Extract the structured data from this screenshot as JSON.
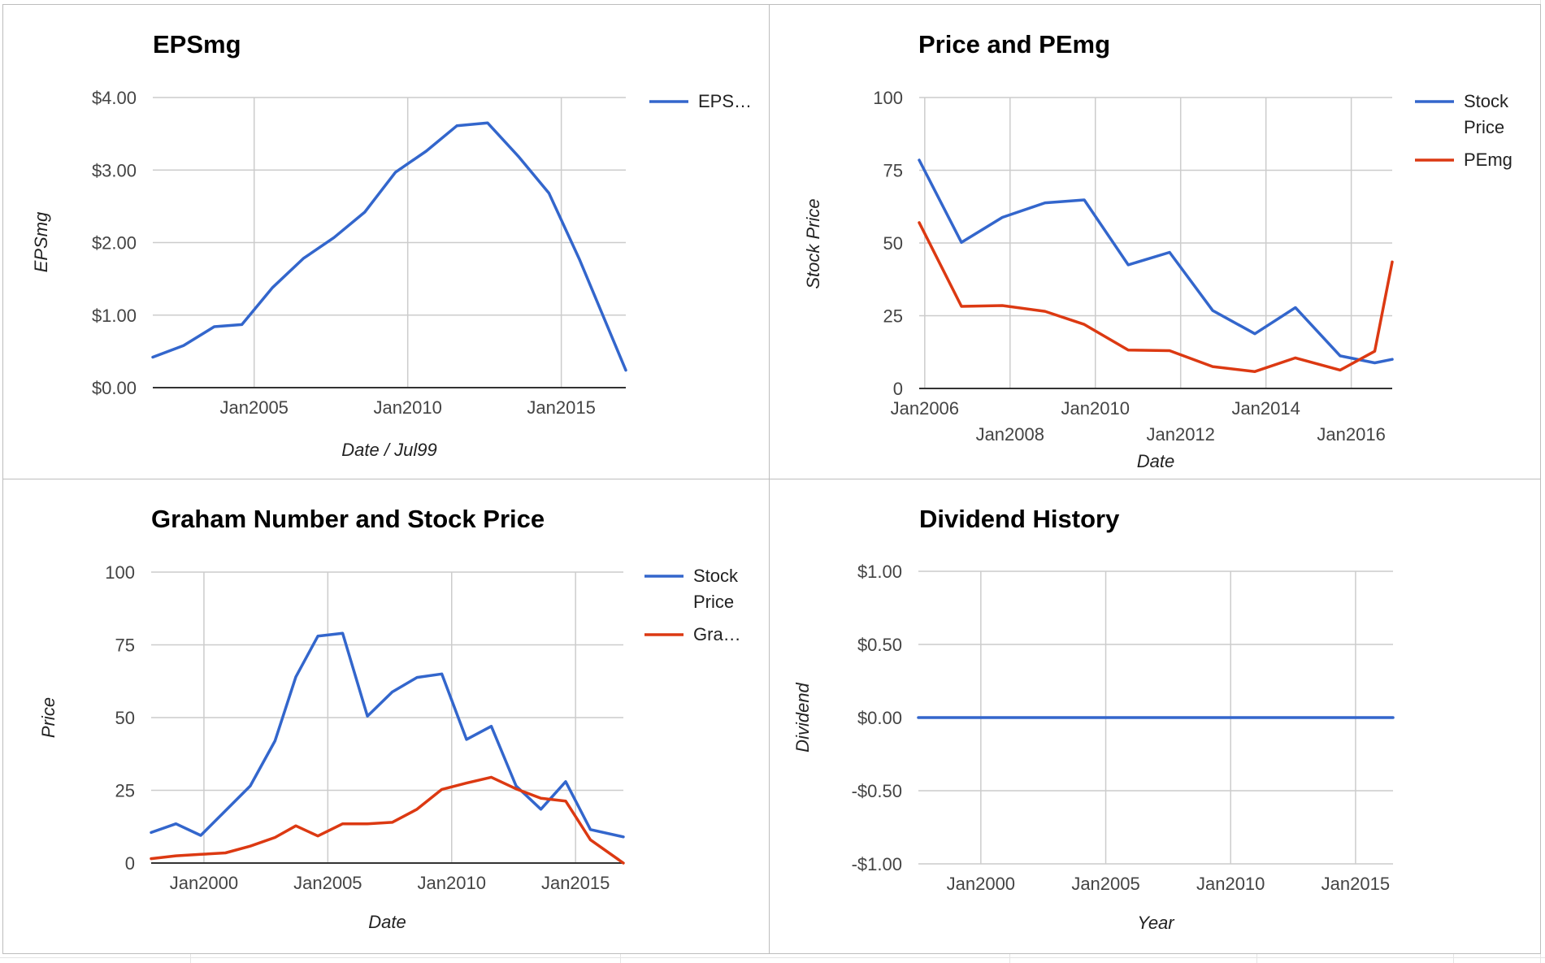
{
  "chart_data": [
    {
      "type": "line",
      "title": "EPSmg",
      "xlabel": "Date / Jul99",
      "ylabel": "EPSmg",
      "ylim": [
        0,
        4
      ],
      "yticks": [
        {
          "value": 0,
          "label": "$0.00"
        },
        {
          "value": 1,
          "label": "$1.00"
        },
        {
          "value": 2,
          "label": "$2.00"
        },
        {
          "value": 3,
          "label": "$3.00"
        },
        {
          "value": 4,
          "label": "$4.00"
        }
      ],
      "xlim": [
        2001.7,
        2017.1
      ],
      "xticks": [
        {
          "value": 2005,
          "label": "Jan2005",
          "row": 0
        },
        {
          "value": 2010,
          "label": "Jan2010",
          "row": 0
        },
        {
          "value": 2015,
          "label": "Jan2015",
          "row": 0
        }
      ],
      "legend_position": "right",
      "grid": true,
      "series": [
        {
          "name": "EPS…",
          "color": "#3366cc",
          "x": [
            2001.7,
            2002.7,
            2003.7,
            2004.6,
            2005.6,
            2006.6,
            2007.6,
            2008.6,
            2009.6,
            2010.6,
            2011.6,
            2012.6,
            2013.6,
            2014.6,
            2015.6,
            2017.1
          ],
          "y": [
            0.42,
            0.58,
            0.84,
            0.87,
            1.38,
            1.78,
            2.07,
            2.42,
            2.97,
            3.26,
            3.61,
            3.65,
            3.19,
            2.68,
            1.76,
            0.24
          ]
        }
      ]
    },
    {
      "type": "line",
      "title": "Price and PEmg",
      "xlabel": "Date",
      "ylabel": "Stock Price",
      "ylim": [
        0,
        100
      ],
      "yticks": [
        {
          "value": 0,
          "label": "0"
        },
        {
          "value": 25,
          "label": "25"
        },
        {
          "value": 50,
          "label": "50"
        },
        {
          "value": 75,
          "label": "75"
        },
        {
          "value": 100,
          "label": "100"
        }
      ],
      "xlim": [
        2005.87,
        2016.96
      ],
      "xticks": [
        {
          "value": 2006,
          "label": "Jan2006",
          "row": 0
        },
        {
          "value": 2008,
          "label": "Jan2008",
          "row": 1
        },
        {
          "value": 2010,
          "label": "Jan2010",
          "row": 0
        },
        {
          "value": 2012,
          "label": "Jan2012",
          "row": 1
        },
        {
          "value": 2014,
          "label": "Jan2014",
          "row": 0
        },
        {
          "value": 2016,
          "label": "Jan2016",
          "row": 1
        }
      ],
      "legend_position": "right",
      "grid": true,
      "series": [
        {
          "name": "Stock Price",
          "name_lines": [
            "Stock",
            "Price"
          ],
          "color": "#3366cc",
          "x": [
            2005.87,
            2006.86,
            2007.82,
            2008.82,
            2009.74,
            2010.77,
            2011.74,
            2012.75,
            2013.74,
            2014.69,
            2015.74,
            2016.55,
            2016.96
          ],
          "y": [
            78.5,
            50.2,
            58.8,
            63.8,
            64.8,
            42.5,
            46.8,
            26.8,
            18.8,
            27.8,
            11.2,
            8.8,
            10.0
          ]
        },
        {
          "name": "PEmg",
          "name_lines": [
            "PEmg"
          ],
          "color": "#dc3912",
          "x": [
            2005.87,
            2006.86,
            2007.82,
            2008.82,
            2009.74,
            2010.77,
            2011.74,
            2012.75,
            2013.74,
            2014.69,
            2015.74,
            2016.55,
            2016.96
          ],
          "y": [
            57.0,
            28.2,
            28.5,
            26.5,
            22.0,
            13.2,
            13.0,
            7.5,
            5.8,
            10.5,
            6.3,
            12.8,
            43.5
          ]
        }
      ]
    },
    {
      "type": "line",
      "title": "Graham Number and Stock Price",
      "xlabel": "Date",
      "ylabel": "Price",
      "ylim": [
        0,
        100
      ],
      "yticks": [
        {
          "value": 0,
          "label": "0"
        },
        {
          "value": 25,
          "label": "25"
        },
        {
          "value": 50,
          "label": "50"
        },
        {
          "value": 75,
          "label": "75"
        },
        {
          "value": 100,
          "label": "100"
        }
      ],
      "xlim": [
        1997.87,
        2016.93
      ],
      "xticks": [
        {
          "value": 2000,
          "label": "Jan2000",
          "row": 0
        },
        {
          "value": 2005,
          "label": "Jan2005",
          "row": 0
        },
        {
          "value": 2010,
          "label": "Jan2010",
          "row": 0
        },
        {
          "value": 2015,
          "label": "Jan2015",
          "row": 0
        }
      ],
      "legend_position": "right",
      "grid": true,
      "series": [
        {
          "name": "Stock Price",
          "name_lines": [
            "Stock",
            "Price"
          ],
          "color": "#3366cc",
          "x": [
            1997.87,
            1998.87,
            1999.87,
            2000.87,
            2001.87,
            2002.87,
            2003.71,
            2004.6,
            2005.6,
            2006.6,
            2007.6,
            2008.6,
            2009.6,
            2010.6,
            2011.6,
            2012.6,
            2013.6,
            2014.6,
            2015.6,
            2016.93
          ],
          "y": [
            10.5,
            13.5,
            9.5,
            18.0,
            26.5,
            42.0,
            64.0,
            78.0,
            79.0,
            50.5,
            58.8,
            63.8,
            65.0,
            42.5,
            47.0,
            26.5,
            18.5,
            28.0,
            11.5,
            9.0
          ]
        },
        {
          "name": "Gra…",
          "name_lines": [
            "Gra…"
          ],
          "color": "#dc3912",
          "x": [
            1997.87,
            1998.87,
            1999.87,
            2000.87,
            2001.87,
            2002.87,
            2003.71,
            2004.6,
            2005.6,
            2006.6,
            2007.6,
            2008.6,
            2009.6,
            2010.6,
            2011.6,
            2012.6,
            2013.6,
            2014.6,
            2015.6,
            2016.93
          ],
          "y": [
            1.5,
            2.5,
            3.0,
            3.5,
            5.8,
            8.8,
            12.8,
            9.3,
            13.5,
            13.5,
            14.0,
            18.5,
            25.3,
            27.5,
            29.5,
            25.5,
            22.3,
            21.3,
            8.0,
            0.0
          ]
        }
      ]
    },
    {
      "type": "line",
      "title": "Dividend History",
      "xlabel": "Year",
      "ylabel": "Dividend",
      "ylim": [
        -1,
        1
      ],
      "yticks": [
        {
          "value": -1,
          "label": "-$1.00"
        },
        {
          "value": -0.5,
          "label": "-$0.50"
        },
        {
          "value": 0,
          "label": "$0.00"
        },
        {
          "value": 0.5,
          "label": "$0.50"
        },
        {
          "value": 1,
          "label": "$1.00"
        }
      ],
      "xlim": [
        1997.5,
        2016.5
      ],
      "xticks": [
        {
          "value": 2000,
          "label": "Jan2000",
          "row": 0
        },
        {
          "value": 2005,
          "label": "Jan2005",
          "row": 0
        },
        {
          "value": 2010,
          "label": "Jan2010",
          "row": 0
        },
        {
          "value": 2015,
          "label": "Jan2015",
          "row": 0
        }
      ],
      "legend_position": "none",
      "grid": true,
      "series": [
        {
          "color": "#3366cc",
          "x": [
            1997.5,
            2016.5
          ],
          "y": [
            0,
            0
          ]
        }
      ]
    }
  ]
}
